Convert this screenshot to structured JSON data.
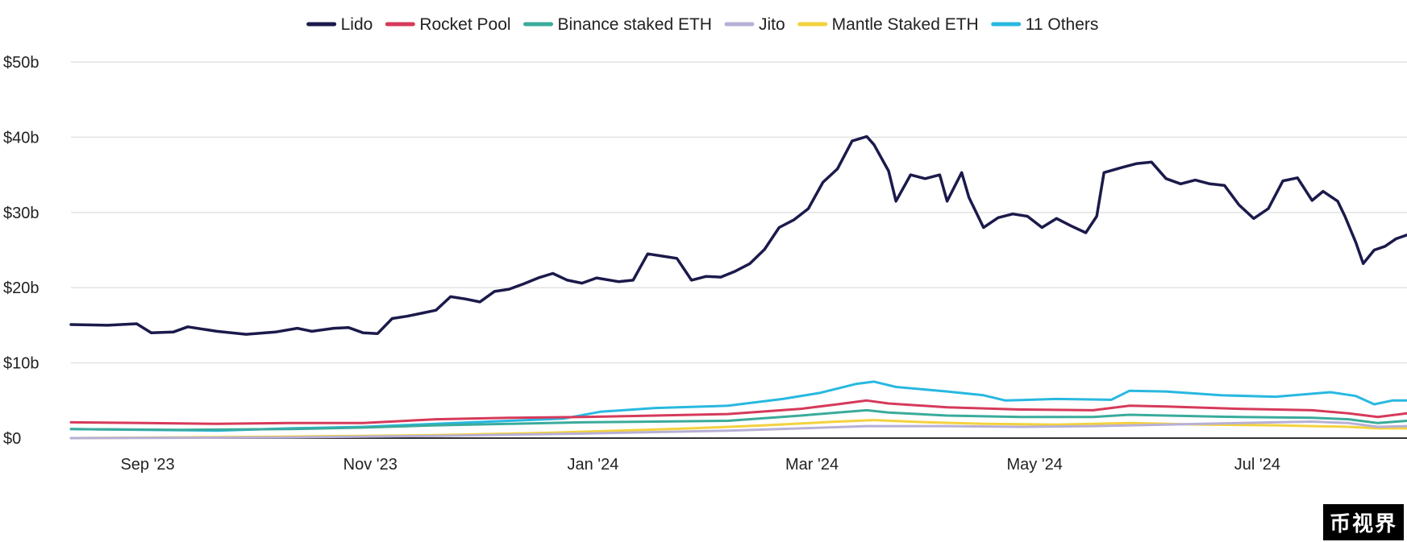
{
  "chart_data": {
    "type": "line",
    "title": "",
    "xlabel": "",
    "ylabel": "",
    "ylim": [
      0,
      50
    ],
    "y_unit": "$b",
    "y_ticks": [
      {
        "value": 0,
        "label": "$0"
      },
      {
        "value": 10,
        "label": "$10b"
      },
      {
        "value": 20,
        "label": "$20b"
      },
      {
        "value": 30,
        "label": "$30b"
      },
      {
        "value": 40,
        "label": "$40b"
      },
      {
        "value": 50,
        "label": "$50b"
      }
    ],
    "x_range_days": [
      0,
      366
    ],
    "x_ticks": [
      {
        "day": 21,
        "label": "Sep '23"
      },
      {
        "day": 82,
        "label": "Nov '23"
      },
      {
        "day": 143,
        "label": "Jan '24"
      },
      {
        "day": 203,
        "label": "Mar '24"
      },
      {
        "day": 264,
        "label": "May '24"
      },
      {
        "day": 325,
        "label": "Jul '24"
      }
    ],
    "legend_position": "top-center",
    "grid": true,
    "series": [
      {
        "name": "Lido",
        "color": "#1b1a4b",
        "points": [
          [
            0,
            15.1
          ],
          [
            10,
            15.0
          ],
          [
            18,
            15.2
          ],
          [
            22,
            14.0
          ],
          [
            28,
            14.1
          ],
          [
            32,
            14.8
          ],
          [
            40,
            14.2
          ],
          [
            48,
            13.8
          ],
          [
            56,
            14.1
          ],
          [
            62,
            14.6
          ],
          [
            66,
            14.2
          ],
          [
            72,
            14.6
          ],
          [
            76,
            14.7
          ],
          [
            80,
            14.0
          ],
          [
            84,
            13.9
          ],
          [
            88,
            15.9
          ],
          [
            92,
            16.2
          ],
          [
            96,
            16.6
          ],
          [
            100,
            17.0
          ],
          [
            104,
            18.8
          ],
          [
            108,
            18.5
          ],
          [
            112,
            18.1
          ],
          [
            116,
            19.5
          ],
          [
            120,
            19.8
          ],
          [
            124,
            20.5
          ],
          [
            128,
            21.3
          ],
          [
            132,
            21.9
          ],
          [
            136,
            21.0
          ],
          [
            140,
            20.6
          ],
          [
            144,
            21.3
          ],
          [
            150,
            20.8
          ],
          [
            154,
            21.0
          ],
          [
            158,
            24.5
          ],
          [
            162,
            24.2
          ],
          [
            166,
            23.9
          ],
          [
            170,
            21.0
          ],
          [
            174,
            21.5
          ],
          [
            178,
            21.4
          ],
          [
            182,
            22.2
          ],
          [
            186,
            23.2
          ],
          [
            190,
            25.1
          ],
          [
            194,
            28.0
          ],
          [
            198,
            29.0
          ],
          [
            202,
            30.5
          ],
          [
            206,
            34.0
          ],
          [
            210,
            35.8
          ],
          [
            214,
            39.5
          ],
          [
            218,
            40.1
          ],
          [
            220,
            39.0
          ],
          [
            224,
            35.5
          ],
          [
            226,
            31.5
          ],
          [
            230,
            35.0
          ],
          [
            234,
            34.5
          ],
          [
            238,
            35.0
          ],
          [
            240,
            31.5
          ],
          [
            244,
            35.3
          ],
          [
            246,
            32.0
          ],
          [
            250,
            28.0
          ],
          [
            254,
            29.3
          ],
          [
            258,
            29.8
          ],
          [
            262,
            29.5
          ],
          [
            266,
            28.0
          ],
          [
            270,
            29.2
          ],
          [
            274,
            28.2
          ],
          [
            278,
            27.3
          ],
          [
            281,
            29.5
          ],
          [
            283,
            35.3
          ],
          [
            288,
            36.0
          ],
          [
            292,
            36.5
          ],
          [
            296,
            36.7
          ],
          [
            300,
            34.5
          ],
          [
            304,
            33.8
          ],
          [
            308,
            34.3
          ],
          [
            312,
            33.8
          ],
          [
            316,
            33.6
          ],
          [
            320,
            31.0
          ],
          [
            324,
            29.2
          ],
          [
            328,
            30.5
          ],
          [
            332,
            34.2
          ],
          [
            336,
            34.6
          ],
          [
            340,
            31.6
          ],
          [
            343,
            32.8
          ],
          [
            347,
            31.5
          ],
          [
            349,
            29.5
          ],
          [
            352,
            26.0
          ],
          [
            354,
            23.2
          ],
          [
            357,
            25.0
          ],
          [
            360,
            25.5
          ],
          [
            363,
            26.5
          ],
          [
            366,
            27.0
          ]
        ]
      },
      {
        "name": "Rocket Pool",
        "color": "#d63a5a",
        "points": [
          [
            0,
            2.1
          ],
          [
            20,
            2.0
          ],
          [
            40,
            1.9
          ],
          [
            60,
            2.0
          ],
          [
            80,
            2.0
          ],
          [
            100,
            2.5
          ],
          [
            120,
            2.7
          ],
          [
            140,
            2.8
          ],
          [
            160,
            3.0
          ],
          [
            180,
            3.2
          ],
          [
            200,
            3.9
          ],
          [
            210,
            4.5
          ],
          [
            218,
            5.0
          ],
          [
            224,
            4.6
          ],
          [
            240,
            4.1
          ],
          [
            260,
            3.8
          ],
          [
            280,
            3.7
          ],
          [
            290,
            4.3
          ],
          [
            300,
            4.2
          ],
          [
            320,
            3.9
          ],
          [
            340,
            3.7
          ],
          [
            350,
            3.3
          ],
          [
            358,
            2.8
          ],
          [
            366,
            3.3
          ]
        ]
      },
      {
        "name": "Binance staked ETH",
        "color": "#3aab9b",
        "points": [
          [
            0,
            1.2
          ],
          [
            30,
            1.1
          ],
          [
            60,
            1.2
          ],
          [
            80,
            1.4
          ],
          [
            100,
            1.7
          ],
          [
            120,
            1.9
          ],
          [
            140,
            2.1
          ],
          [
            160,
            2.2
          ],
          [
            180,
            2.3
          ],
          [
            200,
            3.0
          ],
          [
            210,
            3.4
          ],
          [
            218,
            3.7
          ],
          [
            224,
            3.4
          ],
          [
            240,
            3.0
          ],
          [
            260,
            2.8
          ],
          [
            280,
            2.8
          ],
          [
            290,
            3.1
          ],
          [
            300,
            3.0
          ],
          [
            320,
            2.8
          ],
          [
            340,
            2.7
          ],
          [
            350,
            2.5
          ],
          [
            358,
            2.0
          ],
          [
            366,
            2.3
          ]
        ]
      },
      {
        "name": "Jito",
        "color": "#b7b0d6",
        "points": [
          [
            0,
            0.0
          ],
          [
            60,
            0.1
          ],
          [
            100,
            0.3
          ],
          [
            140,
            0.6
          ],
          [
            160,
            0.8
          ],
          [
            180,
            1.0
          ],
          [
            200,
            1.3
          ],
          [
            218,
            1.6
          ],
          [
            240,
            1.6
          ],
          [
            260,
            1.5
          ],
          [
            280,
            1.6
          ],
          [
            300,
            1.8
          ],
          [
            320,
            2.0
          ],
          [
            340,
            2.2
          ],
          [
            350,
            2.0
          ],
          [
            358,
            1.5
          ],
          [
            366,
            1.6
          ]
        ]
      },
      {
        "name": "Mantle Staked ETH",
        "color": "#f3d23e",
        "points": [
          [
            0,
            0.0
          ],
          [
            60,
            0.2
          ],
          [
            100,
            0.4
          ],
          [
            130,
            0.7
          ],
          [
            150,
            1.0
          ],
          [
            170,
            1.3
          ],
          [
            190,
            1.7
          ],
          [
            210,
            2.2
          ],
          [
            220,
            2.4
          ],
          [
            235,
            2.1
          ],
          [
            250,
            1.9
          ],
          [
            270,
            1.8
          ],
          [
            290,
            2.0
          ],
          [
            310,
            1.8
          ],
          [
            330,
            1.7
          ],
          [
            350,
            1.5
          ],
          [
            358,
            1.3
          ],
          [
            366,
            1.3
          ]
        ]
      },
      {
        "name": "11 Others",
        "color": "#28b8e0",
        "points": [
          [
            0,
            1.2
          ],
          [
            20,
            1.1
          ],
          [
            40,
            1.0
          ],
          [
            60,
            1.3
          ],
          [
            80,
            1.5
          ],
          [
            100,
            1.9
          ],
          [
            120,
            2.3
          ],
          [
            135,
            2.6
          ],
          [
            145,
            3.5
          ],
          [
            160,
            4.0
          ],
          [
            180,
            4.3
          ],
          [
            195,
            5.2
          ],
          [
            205,
            6.0
          ],
          [
            215,
            7.2
          ],
          [
            220,
            7.5
          ],
          [
            226,
            6.8
          ],
          [
            240,
            6.2
          ],
          [
            250,
            5.7
          ],
          [
            256,
            5.0
          ],
          [
            270,
            5.2
          ],
          [
            285,
            5.1
          ],
          [
            290,
            6.3
          ],
          [
            300,
            6.2
          ],
          [
            315,
            5.7
          ],
          [
            330,
            5.5
          ],
          [
            345,
            6.1
          ],
          [
            352,
            5.6
          ],
          [
            357,
            4.5
          ],
          [
            362,
            5.0
          ],
          [
            366,
            5.0
          ]
        ]
      }
    ]
  },
  "watermark": "币视界"
}
